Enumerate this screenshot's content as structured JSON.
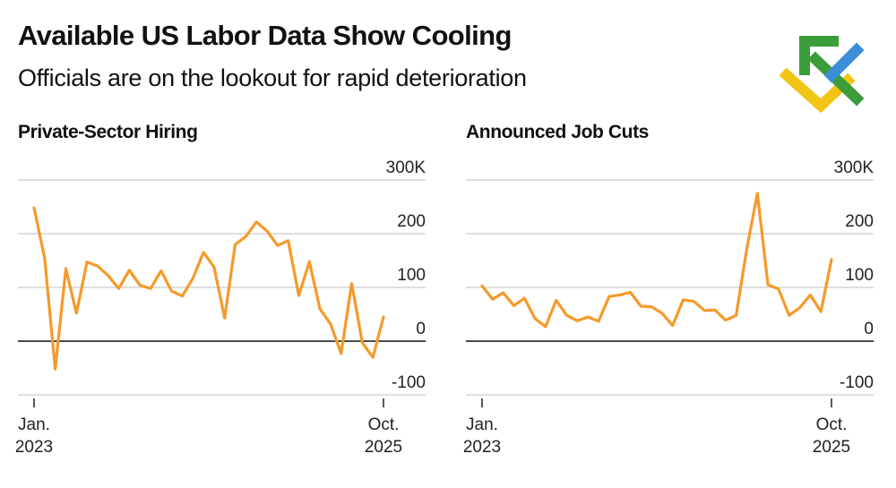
{
  "title": "Available US Labor Data Show Cooling",
  "subtitle": "Officials are on the lookout for rapid deterioration",
  "logo": {
    "name": "brand-logo",
    "colors": {
      "green": "#3a9d3a",
      "blue": "#3a8fd6",
      "yellow": "#f2c418"
    }
  },
  "colors": {
    "series": "#f59a2a",
    "grid": "#cccccc",
    "zero": "#111111"
  },
  "chart_data": [
    {
      "type": "line",
      "title": "Private-Sector Hiring",
      "xlabel": "",
      "ylabel": "",
      "ylim": [
        -100,
        300
      ],
      "yticks": [
        300,
        200,
        100,
        0,
        -100
      ],
      "ytick_labels": [
        "300K",
        "200",
        "100",
        "0",
        "-100"
      ],
      "x_start_label": [
        "Jan.",
        "2023"
      ],
      "x_end_label": [
        "Oct.",
        "2025"
      ],
      "series": [
        {
          "name": "Private-Sector Hiring",
          "values": [
            248,
            155,
            -52,
            135,
            52,
            147,
            140,
            122,
            98,
            132,
            104,
            98,
            131,
            93,
            84,
            117,
            165,
            138,
            43,
            180,
            195,
            222,
            205,
            178,
            187,
            85,
            148,
            60,
            32,
            -23,
            107,
            -3,
            -30,
            45
          ]
        }
      ]
    },
    {
      "type": "line",
      "title": "Announced Job Cuts",
      "xlabel": "",
      "ylabel": "",
      "ylim": [
        -100,
        300
      ],
      "yticks": [
        300,
        200,
        100,
        0,
        -100
      ],
      "ytick_labels": [
        "300K",
        "200",
        "100",
        "0",
        "-100"
      ],
      "x_start_label": [
        "Jan.",
        "2023"
      ],
      "x_end_label": [
        "Oct.",
        "2025"
      ],
      "series": [
        {
          "name": "Announced Job Cuts",
          "values": [
            103,
            78,
            90,
            66,
            80,
            42,
            27,
            76,
            48,
            38,
            45,
            37,
            83,
            86,
            91,
            65,
            64,
            52,
            29,
            77,
            74,
            57,
            58,
            39,
            48,
            172,
            275,
            105,
            97,
            48,
            62,
            86,
            55,
            152
          ]
        }
      ]
    }
  ]
}
